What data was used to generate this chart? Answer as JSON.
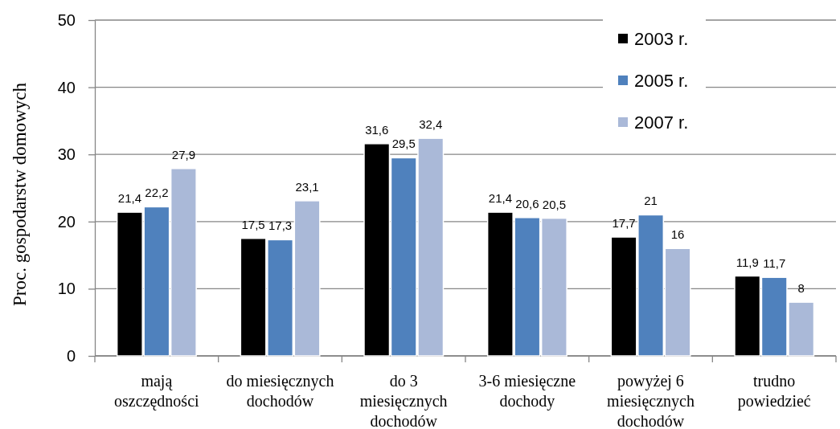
{
  "chart_data": {
    "type": "bar",
    "ylabel": "Proc. gospodarstw domowych",
    "categories": [
      "mają oszczędności",
      "do miesięcznych dochodów",
      "do 3 miesięcznych dochodów",
      "3-6 miesięczne dochody",
      "powyżej 6 miesięcznych dochodów",
      "trudno powiedzieć"
    ],
    "series": [
      {
        "name": "2003 r.",
        "color": "#000000",
        "values": [
          21.4,
          17.5,
          31.6,
          21.4,
          17.7,
          11.9
        ],
        "value_labels": [
          "21,4",
          "17,5",
          "31,6",
          "21,4",
          "17,7",
          "11,9"
        ]
      },
      {
        "name": "2005 r.",
        "color": "#4f81bd",
        "values": [
          22.2,
          17.3,
          29.5,
          20.6,
          21,
          11.7
        ],
        "value_labels": [
          "22,2",
          "17,3",
          "29,5",
          "20,6",
          "21",
          "11,7"
        ]
      },
      {
        "name": "2007 r.",
        "color": "#aab9d8",
        "values": [
          27.9,
          23.1,
          32.4,
          20.5,
          16,
          8
        ],
        "value_labels": [
          "27,9",
          "23,1",
          "32,4",
          "20,5",
          "16",
          "8"
        ]
      }
    ],
    "ylim": [
      0,
      50
    ],
    "yticks": [
      0,
      10,
      20,
      30,
      40,
      50
    ],
    "grid": "y",
    "legend": "top right"
  }
}
